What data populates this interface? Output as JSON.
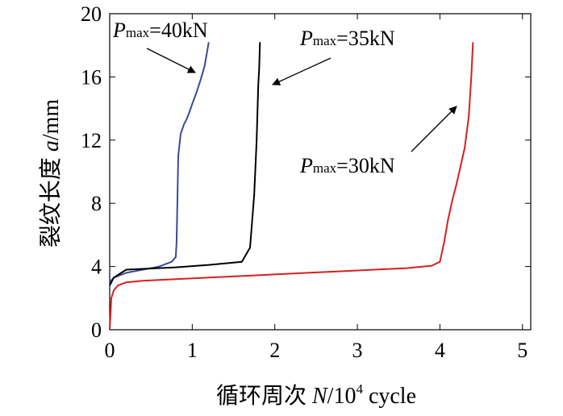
{
  "chart_data": {
    "type": "line",
    "xlabel_parts": {
      "prefix": "循环周次 ",
      "var": "N",
      "mid": "/10",
      "sup": "4",
      "suffix": " cycle"
    },
    "ylabel_parts": {
      "prefix": "裂纹长度 ",
      "var": "a",
      "suffix": "/mm"
    },
    "xlim": [
      0,
      5.1
    ],
    "ylim": [
      0,
      20
    ],
    "xticks": [
      0,
      1,
      2,
      3,
      4,
      5
    ],
    "yticks": [
      0,
      4,
      8,
      12,
      16,
      20
    ],
    "grid": false,
    "series": [
      {
        "color": "#3a4a9a",
        "annotation": {
          "P": "P",
          "sub": "max",
          "value": "=40kN"
        },
        "x": [
          0,
          0.05,
          0.2,
          0.4,
          0.6,
          0.75,
          0.8,
          0.81,
          0.82,
          0.83,
          0.86,
          0.9,
          0.93,
          0.96,
          1.0,
          1.05,
          1.1,
          1.15,
          1.2
        ],
        "y": [
          3.0,
          3.3,
          3.6,
          3.8,
          4.0,
          4.3,
          4.6,
          5.5,
          8.0,
          11.0,
          12.4,
          13.0,
          13.3,
          13.7,
          14.3,
          15.0,
          15.8,
          16.7,
          18.2
        ]
      },
      {
        "color": "#000000",
        "annotation": {
          "P": "P",
          "sub": "max",
          "value": "=35kN"
        },
        "x": [
          0,
          0.05,
          0.2,
          0.4,
          0.8,
          1.2,
          1.6,
          1.7,
          1.75,
          1.78,
          1.8,
          1.81,
          1.82
        ],
        "y": [
          2.8,
          3.3,
          3.8,
          3.85,
          3.95,
          4.1,
          4.3,
          5.2,
          8.5,
          12.0,
          15.5,
          16.5,
          18.2
        ]
      },
      {
        "color": "#d42020",
        "annotation": {
          "P": "P",
          "sub": "max",
          "value": "=30kN"
        },
        "x": [
          0,
          0.02,
          0.05,
          0.1,
          0.2,
          0.4,
          0.8,
          1.2,
          1.6,
          2.0,
          2.4,
          2.8,
          3.2,
          3.6,
          3.9,
          4.0,
          4.05,
          4.1,
          4.15,
          4.2,
          4.3,
          4.35,
          4.38,
          4.4
        ],
        "y": [
          0,
          2.0,
          2.5,
          2.8,
          3.0,
          3.1,
          3.2,
          3.3,
          3.4,
          3.5,
          3.6,
          3.7,
          3.8,
          3.9,
          4.05,
          4.3,
          5.5,
          7.0,
          8.2,
          9.2,
          11.5,
          13.5,
          16.0,
          18.2
        ]
      }
    ]
  }
}
